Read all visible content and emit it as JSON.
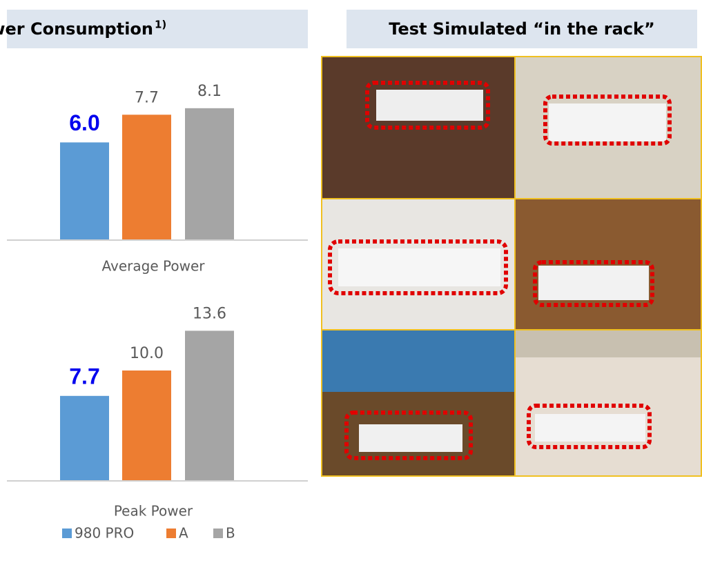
{
  "header": {
    "left_title": "Power Consumption",
    "left_footnote": "1)",
    "right_title": "Test Simulated “in the rack”"
  },
  "legend": [
    {
      "name": "980 PRO",
      "color": "#5b9bd5"
    },
    {
      "name": "A",
      "color": "#ed7d31"
    },
    {
      "name": "B",
      "color": "#a5a5a5"
    }
  ],
  "chart_data": [
    {
      "type": "bar",
      "xlabel": "Average Power",
      "values": [
        6.0,
        7.7,
        8.1
      ],
      "value_labels": [
        "6.0",
        "7.7",
        "8.1"
      ],
      "ylim": [
        0,
        10
      ]
    },
    {
      "type": "bar",
      "xlabel": "Peak Power",
      "values": [
        7.7,
        10.0,
        13.6
      ],
      "value_labels": [
        "7.7",
        "10.0",
        "13.6"
      ],
      "ylim": [
        0,
        16
      ]
    }
  ]
}
